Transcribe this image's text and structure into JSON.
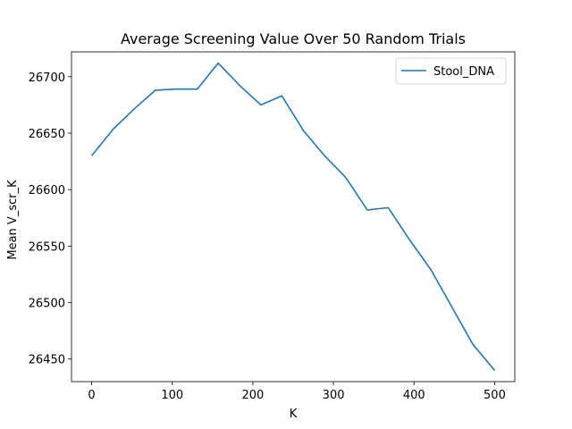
{
  "chart_data": {
    "type": "line",
    "title": "Average Screening Value Over 50 Random Trials",
    "xlabel": "K",
    "ylabel": "Mean V_scr_K",
    "xlim": [
      -25,
      525
    ],
    "ylim": [
      26430,
      26722
    ],
    "xticks": [
      0,
      100,
      200,
      300,
      400,
      500
    ],
    "yticks": [
      26450,
      26500,
      26550,
      26600,
      26650,
      26700
    ],
    "grid": false,
    "legend_position": "top-right",
    "series": [
      {
        "name": "Stool_DNA",
        "color": "#1f77b4",
        "x": [
          0,
          26,
          52,
          79,
          105,
          131,
          157,
          184,
          210,
          236,
          263,
          289,
          315,
          342,
          368,
          394,
          421,
          447,
          473,
          500
        ],
        "y": [
          26630,
          26653,
          26671,
          26688,
          26689,
          26689,
          26712,
          26692,
          26675,
          26683,
          26652,
          26630,
          26611,
          26582,
          26584,
          26556,
          26529,
          26496,
          26463,
          26440
        ]
      }
    ]
  }
}
